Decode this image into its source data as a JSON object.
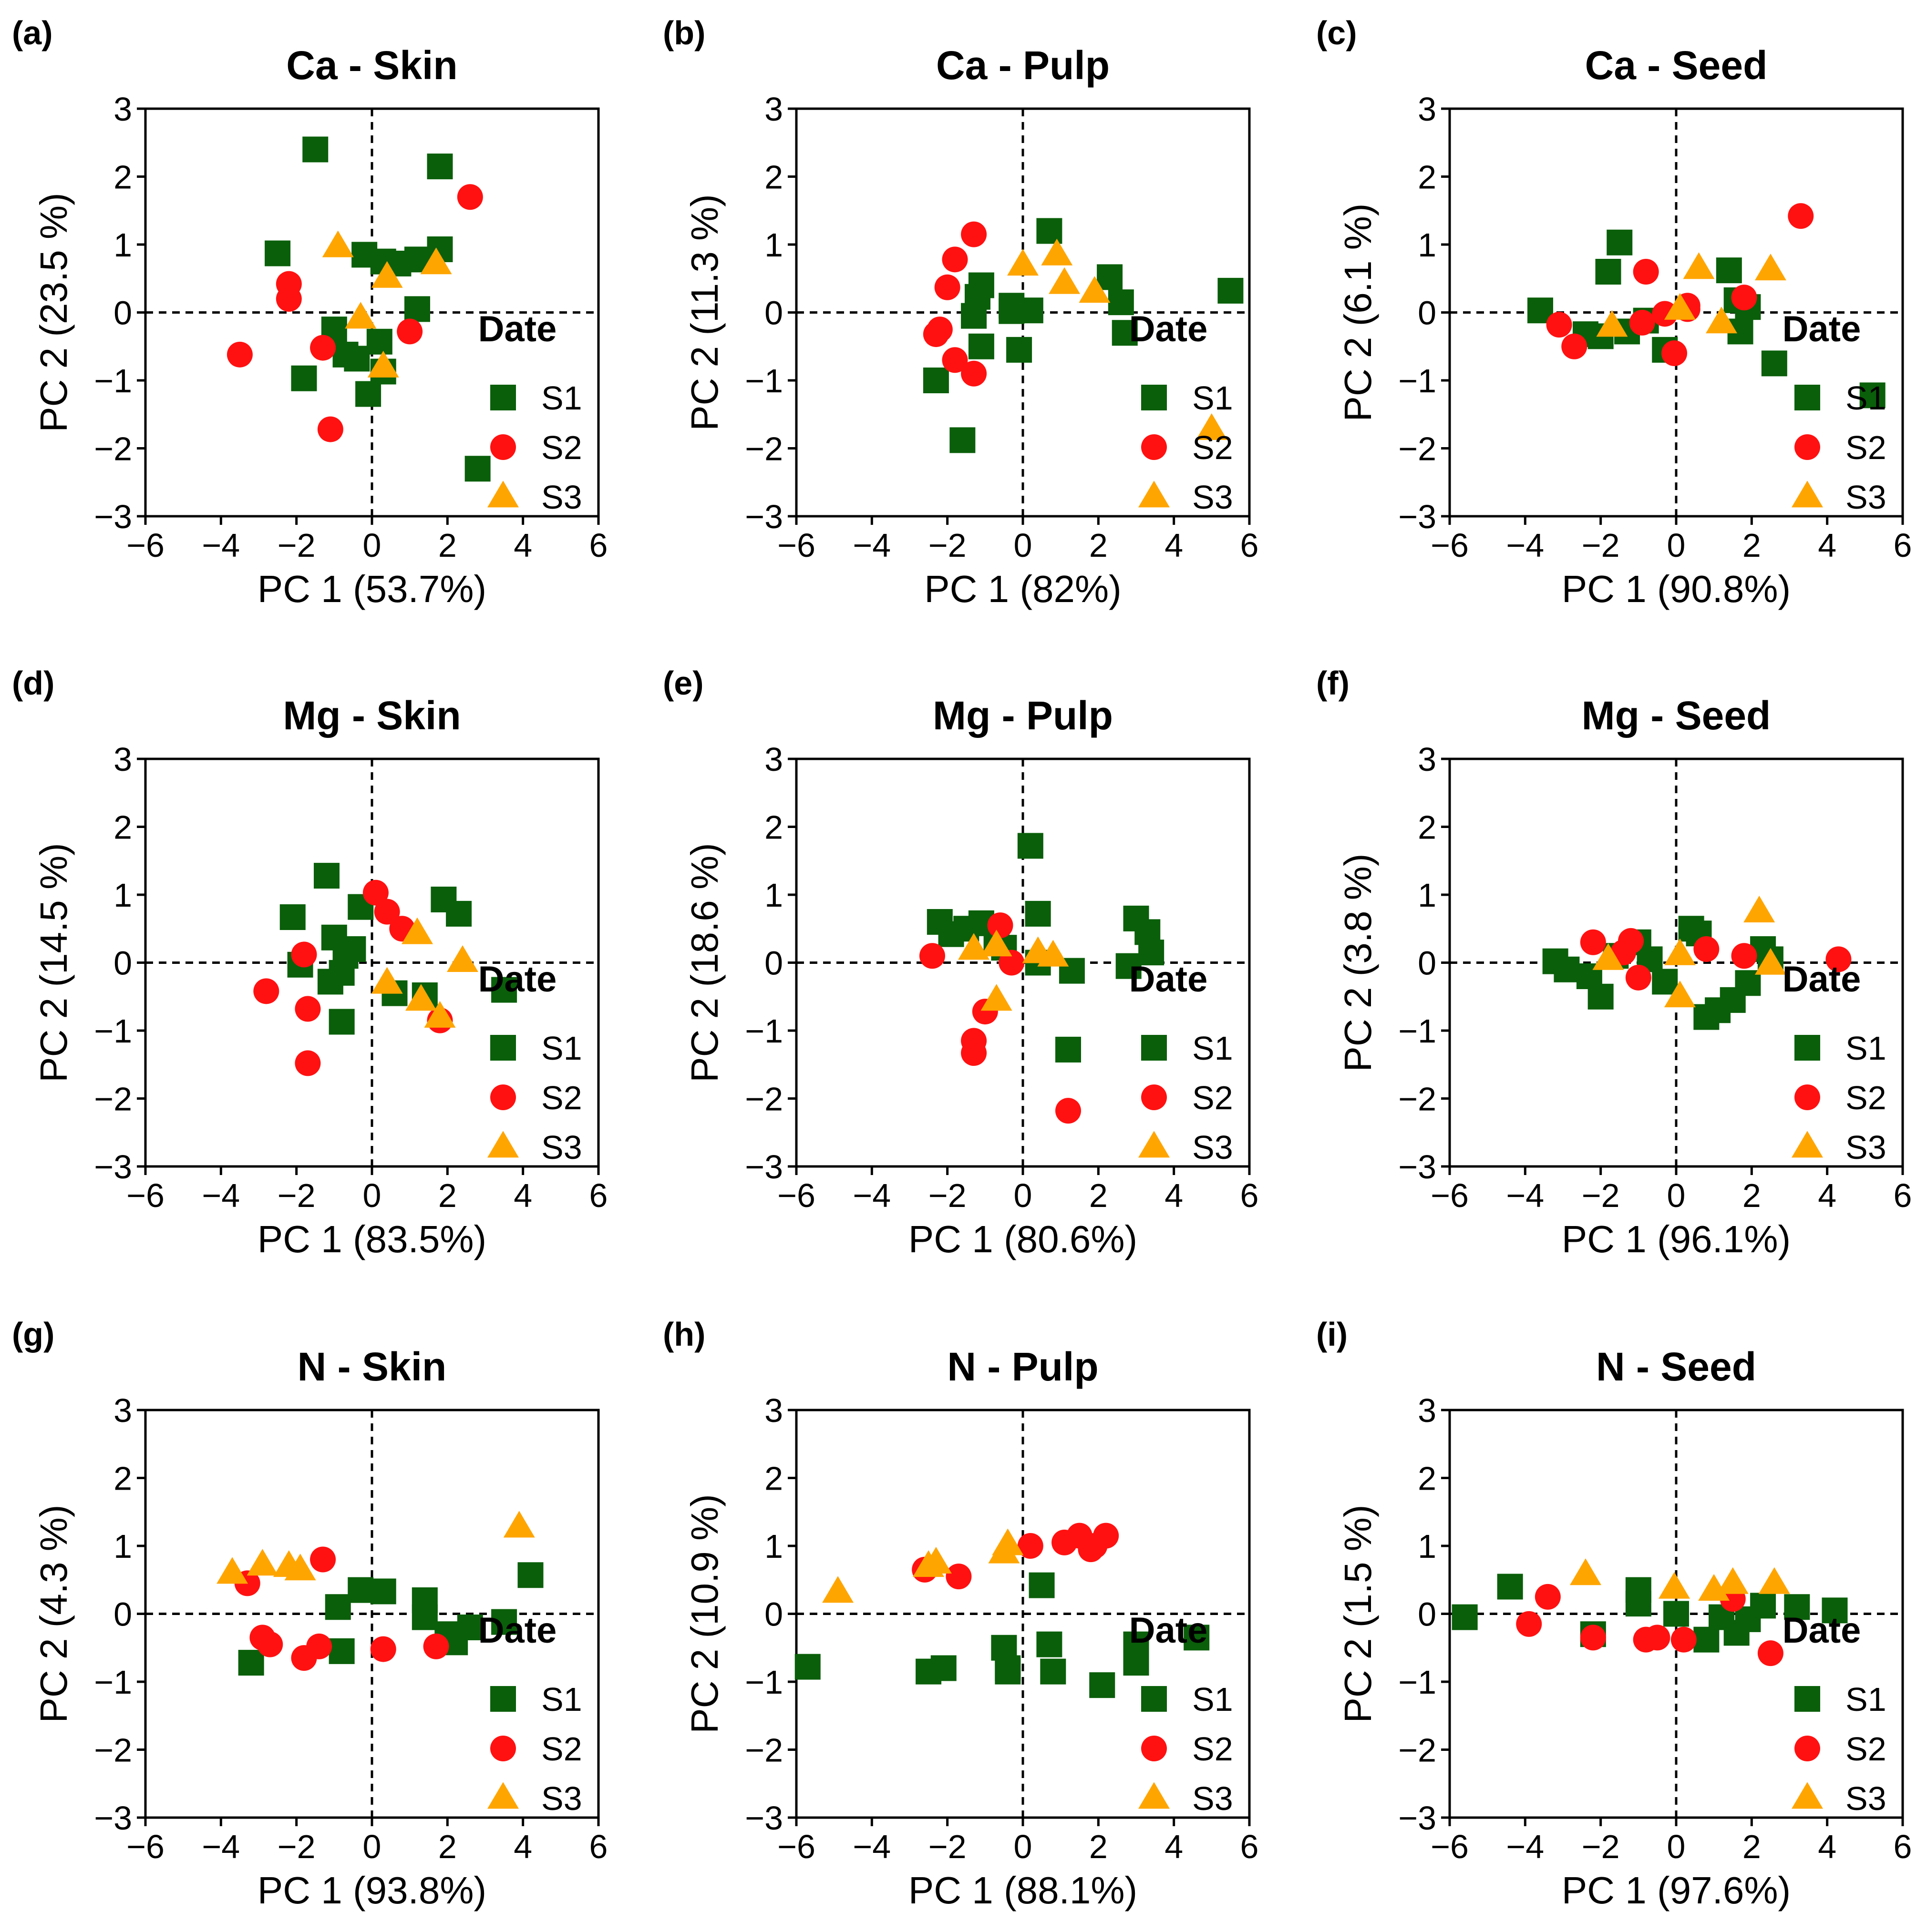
{
  "colors": {
    "S1": "#0a5f0a",
    "S2": "#ff1111",
    "S3": "#ffa500"
  },
  "chart_data": [
    {
      "type": "scatter",
      "panel": "(a)",
      "title": "Ca - Skin",
      "xlabel": "PC 1 (53.7%)",
      "ylabel": "PC 2 (23.5 %)",
      "xlim": [
        -6,
        6
      ],
      "ylim": [
        -3,
        3
      ],
      "xticks": [
        "−6",
        "−4",
        "−2",
        "0",
        "2",
        "4",
        "6"
      ],
      "yticks": [
        "−3",
        "−2",
        "−1",
        "0",
        "1",
        "2",
        "3"
      ],
      "legend": {
        "title": "Date",
        "entries": [
          "S1",
          "S2",
          "S3"
        ]
      },
      "series": [
        {
          "name": "S1",
          "marker": "square",
          "x": [
            -1.5,
            -2.5,
            -0.2,
            0.3,
            0.7,
            1.2,
            1.8,
            1.8,
            -1.8,
            -1.0,
            -0.7,
            -0.4,
            0.2,
            0.3,
            -0.1,
            1.2,
            2.8
          ],
          "y": [
            2.4,
            0.87,
            0.85,
            0.75,
            0.72,
            0.78,
            2.15,
            0.93,
            -0.97,
            -0.25,
            -0.62,
            -0.68,
            -0.43,
            -0.87,
            -1.2,
            0.05,
            -2.3
          ]
        },
        {
          "name": "S2",
          "marker": "circle",
          "x": [
            -2.2,
            -2.2,
            -3.5,
            -1.3,
            -1.1,
            1.0,
            2.6
          ],
          "y": [
            0.42,
            0.2,
            -0.62,
            -0.52,
            -1.72,
            -0.28,
            1.7
          ]
        },
        {
          "name": "S3",
          "marker": "triangle",
          "x": [
            -0.9,
            0.4,
            1.7,
            -0.3,
            0.3
          ],
          "y": [
            0.97,
            0.52,
            0.72,
            -0.08,
            -0.8
          ]
        }
      ]
    },
    {
      "type": "scatter",
      "panel": "(b)",
      "title": "Ca - Pulp",
      "xlabel": "PC 1 (82%)",
      "ylabel": "PC 2 (11.3 %)",
      "xlim": [
        -6,
        6
      ],
      "ylim": [
        -3,
        3
      ],
      "xticks": [
        "−6",
        "−4",
        "−2",
        "0",
        "2",
        "4",
        "6"
      ],
      "yticks": [
        "−3",
        "−2",
        "−1",
        "0",
        "1",
        "2",
        "3"
      ],
      "legend": {
        "title": "Date",
        "entries": [
          "S1",
          "S2",
          "S3"
        ]
      },
      "series": [
        {
          "name": "S1",
          "marker": "square",
          "x": [
            0.7,
            -1.1,
            -1.2,
            -1.3,
            -1.1,
            -0.3,
            -0.3,
            0.2,
            -2.3,
            -1.6,
            -0.1,
            2.3,
            2.6,
            2.7,
            5.5
          ],
          "y": [
            1.2,
            0.4,
            0.23,
            -0.05,
            -0.5,
            0.1,
            0.02,
            0.03,
            -1.0,
            -1.88,
            -0.55,
            0.52,
            0.15,
            -0.3,
            0.32
          ]
        },
        {
          "name": "S2",
          "marker": "circle",
          "x": [
            -1.3,
            -1.8,
            -2.0,
            -2.2,
            -2.3,
            -1.8,
            -1.3
          ],
          "y": [
            1.15,
            0.78,
            0.37,
            -0.25,
            -0.32,
            -0.7,
            -0.9
          ]
        },
        {
          "name": "S3",
          "marker": "triangle",
          "x": [
            0.0,
            0.9,
            1.1,
            1.9,
            5.0
          ],
          "y": [
            0.7,
            0.85,
            0.43,
            0.3,
            -1.72
          ]
        }
      ]
    },
    {
      "type": "scatter",
      "panel": "(c)",
      "title": "Ca - Seed",
      "xlabel": "PC 1 (90.8%)",
      "ylabel": "PC 2 (6.1 %)",
      "xlim": [
        -6,
        6
      ],
      "ylim": [
        -3,
        3
      ],
      "xticks": [
        "−6",
        "−4",
        "−2",
        "0",
        "2",
        "4",
        "6"
      ],
      "yticks": [
        "−3",
        "−2",
        "−1",
        "0",
        "1",
        "2",
        "3"
      ],
      "legend": {
        "title": "Date",
        "entries": [
          "S1",
          "S2",
          "S3"
        ]
      },
      "series": [
        {
          "name": "S1",
          "marker": "square",
          "x": [
            -1.5,
            -1.8,
            -3.6,
            -2.4,
            -2.0,
            -1.3,
            -0.8,
            1.4,
            1.6,
            1.9,
            1.7,
            2.6,
            -0.3,
            5.2
          ],
          "y": [
            1.03,
            0.6,
            0.03,
            -0.32,
            -0.35,
            -0.28,
            -0.12,
            0.62,
            0.18,
            0.08,
            -0.28,
            -0.75,
            -0.55,
            -1.22
          ]
        },
        {
          "name": "S2",
          "marker": "circle",
          "x": [
            3.3,
            -0.8,
            -3.1,
            -2.7,
            -0.9,
            0.3,
            0.3,
            1.8,
            -0.05,
            -0.3
          ],
          "y": [
            1.42,
            0.6,
            -0.18,
            -0.5,
            -0.15,
            0.05,
            0.1,
            0.22,
            -0.6,
            -0.02
          ]
        },
        {
          "name": "S3",
          "marker": "triangle",
          "x": [
            0.6,
            2.5,
            -1.7,
            0.1,
            1.2
          ],
          "y": [
            0.65,
            0.63,
            -0.2,
            0.05,
            -0.15
          ]
        }
      ]
    },
    {
      "type": "scatter",
      "panel": "(d)",
      "title": "Mg - Skin",
      "xlabel": "PC 1 (83.5%)",
      "ylabel": "PC 2 (14.5 %)",
      "xlim": [
        -6,
        6
      ],
      "ylim": [
        -3,
        3
      ],
      "xticks": [
        "−6",
        "−4",
        "−2",
        "0",
        "2",
        "4",
        "6"
      ],
      "yticks": [
        "−3",
        "−2",
        "−1",
        "0",
        "1",
        "2",
        "3"
      ],
      "legend": {
        "title": "Date",
        "entries": [
          "S1",
          "S2",
          "S3"
        ]
      },
      "series": [
        {
          "name": "S1",
          "marker": "square",
          "x": [
            -1.2,
            -2.1,
            -1.0,
            -0.5,
            -0.3,
            -0.7,
            -1.9,
            -1.1,
            -0.8,
            -0.8,
            1.9,
            2.3,
            3.5,
            0.6,
            1.4
          ],
          "y": [
            1.28,
            0.67,
            0.37,
            0.2,
            0.82,
            0.1,
            -0.03,
            -0.28,
            -0.15,
            -0.87,
            0.93,
            0.72,
            -0.4,
            -0.45,
            -0.48
          ]
        },
        {
          "name": "S2",
          "marker": "circle",
          "x": [
            0.1,
            0.4,
            0.8,
            -1.8,
            -2.8,
            -1.7,
            -1.7,
            1.8
          ],
          "y": [
            1.03,
            0.75,
            0.5,
            0.12,
            -0.42,
            -0.68,
            -1.48,
            -0.85
          ]
        },
        {
          "name": "S3",
          "marker": "triangle",
          "x": [
            1.2,
            2.4,
            0.4,
            1.3,
            1.8
          ],
          "y": [
            0.43,
            0.02,
            -0.3,
            -0.55,
            -0.8
          ]
        }
      ]
    },
    {
      "type": "scatter",
      "panel": "(e)",
      "title": "Mg - Pulp",
      "xlabel": "PC 1 (80.6%)",
      "ylabel": "PC 2 (18.6 %)",
      "xlim": [
        -6,
        6
      ],
      "ylim": [
        -3,
        3
      ],
      "xticks": [
        "−6",
        "−4",
        "−2",
        "0",
        "2",
        "4",
        "6"
      ],
      "yticks": [
        "−3",
        "−2",
        "−1",
        "0",
        "1",
        "2",
        "3"
      ],
      "legend": {
        "title": "Date",
        "entries": [
          "S1",
          "S2",
          "S3"
        ]
      },
      "series": [
        {
          "name": "S1",
          "marker": "square",
          "x": [
            0.2,
            -2.2,
            -1.9,
            -1.5,
            -1.1,
            -0.7,
            -0.5,
            0.4,
            3.0,
            3.3,
            3.4,
            2.8,
            1.3,
            0.4,
            1.2
          ],
          "y": [
            1.72,
            0.6,
            0.42,
            0.5,
            0.58,
            0.35,
            0.22,
            0.72,
            0.65,
            0.45,
            0.15,
            -0.05,
            -0.12,
            0.0,
            -1.28
          ]
        },
        {
          "name": "S2",
          "marker": "circle",
          "x": [
            -2.4,
            -0.6,
            -1.3,
            -1.3,
            -1.0,
            -0.3,
            1.2
          ],
          "y": [
            0.1,
            0.55,
            -1.15,
            -1.33,
            -0.72,
            0.0,
            -2.18
          ]
        },
        {
          "name": "S3",
          "marker": "triangle",
          "x": [
            -1.3,
            -0.7,
            0.4,
            0.8,
            -0.7
          ],
          "y": [
            0.2,
            0.25,
            0.15,
            0.1,
            -0.55
          ]
        }
      ]
    },
    {
      "type": "scatter",
      "panel": "(f)",
      "title": "Mg - Seed",
      "xlabel": "PC 1 (96.1%)",
      "ylabel": "PC 2 (3.8 %)",
      "xlim": [
        -6,
        6
      ],
      "ylim": [
        -3,
        3
      ],
      "xticks": [
        "−6",
        "−4",
        "−2",
        "0",
        "2",
        "4",
        "6"
      ],
      "yticks": [
        "−3",
        "−2",
        "−1",
        "0",
        "1",
        "2",
        "3"
      ],
      "legend": {
        "title": "Date",
        "entries": [
          "S1",
          "S2",
          "S3"
        ]
      },
      "series": [
        {
          "name": "S1",
          "marker": "square",
          "x": [
            -3.2,
            -2.9,
            -2.3,
            -2.0,
            -1.6,
            -1.0,
            -0.7,
            -0.3,
            0.4,
            0.6,
            0.8,
            1.1,
            1.5,
            1.9,
            2.3,
            2.5
          ],
          "y": [
            0.02,
            -0.1,
            -0.2,
            -0.5,
            0.1,
            0.3,
            0.05,
            -0.28,
            0.5,
            0.43,
            -0.8,
            -0.7,
            -0.55,
            -0.3,
            0.2,
            0.05
          ]
        },
        {
          "name": "S2",
          "marker": "circle",
          "x": [
            -2.2,
            -1.4,
            -1.2,
            -1.0,
            0.8,
            1.8,
            4.3
          ],
          "y": [
            0.3,
            0.15,
            0.32,
            -0.22,
            0.2,
            0.1,
            0.05
          ]
        },
        {
          "name": "S3",
          "marker": "triangle",
          "x": [
            2.2,
            -1.8,
            0.1,
            0.1,
            2.5
          ],
          "y": [
            0.75,
            0.05,
            0.12,
            -0.5,
            -0.02
          ]
        }
      ]
    },
    {
      "type": "scatter",
      "panel": "(g)",
      "title": "N - Skin",
      "xlabel": "PC 1 (93.8%)",
      "ylabel": "PC 2 (4.3 %)",
      "xlim": [
        -6,
        6
      ],
      "ylim": [
        -3,
        3
      ],
      "xticks": [
        "−6",
        "−4",
        "−2",
        "0",
        "2",
        "4",
        "6"
      ],
      "yticks": [
        "−3",
        "−2",
        "−1",
        "0",
        "1",
        "2",
        "3"
      ],
      "legend": {
        "title": "Date",
        "entries": [
          "S1",
          "S2",
          "S3"
        ]
      },
      "series": [
        {
          "name": "S1",
          "marker": "square",
          "x": [
            -3.2,
            -0.9,
            -0.8,
            -0.3,
            0.3,
            1.4,
            1.4,
            2.0,
            2.2,
            2.6,
            3.5,
            4.2
          ],
          "y": [
            -0.72,
            0.1,
            -0.55,
            0.35,
            0.33,
            0.2,
            -0.05,
            -0.3,
            -0.42,
            -0.2,
            -0.12,
            0.57
          ]
        },
        {
          "name": "S2",
          "marker": "circle",
          "x": [
            -3.3,
            -2.9,
            -2.7,
            -1.8,
            -1.4,
            -1.3,
            0.3,
            1.7
          ],
          "y": [
            0.45,
            -0.35,
            -0.45,
            -0.65,
            -0.48,
            0.8,
            -0.52,
            -0.48
          ]
        },
        {
          "name": "S3",
          "marker": "triangle",
          "x": [
            -3.7,
            -2.9,
            -2.2,
            -1.9,
            3.9
          ],
          "y": [
            0.6,
            0.72,
            0.7,
            0.65,
            1.28
          ]
        }
      ]
    },
    {
      "type": "scatter",
      "panel": "(h)",
      "title": "N - Pulp",
      "xlabel": "PC 1 (88.1%)",
      "ylabel": "PC 2 (10.9 %)",
      "xlim": [
        -6,
        6
      ],
      "ylim": [
        -3,
        3
      ],
      "xticks": [
        "−6",
        "−4",
        "−2",
        "0",
        "2",
        "4",
        "6"
      ],
      "yticks": [
        "−3",
        "−2",
        "−1",
        "0",
        "1",
        "2",
        "3"
      ],
      "legend": {
        "title": "Date",
        "entries": [
          "S1",
          "S2",
          "S3"
        ]
      },
      "series": [
        {
          "name": "S1",
          "marker": "square",
          "x": [
            -5.7,
            -2.5,
            -2.1,
            -0.5,
            -0.4,
            -0.4,
            0.5,
            0.7,
            0.8,
            2.1,
            3.0,
            3.0,
            4.6
          ],
          "y": [
            -0.78,
            -0.85,
            -0.8,
            -0.5,
            -0.8,
            -0.85,
            0.42,
            -0.45,
            -0.85,
            -1.05,
            -0.45,
            -0.72,
            -0.35
          ]
        },
        {
          "name": "S2",
          "marker": "circle",
          "x": [
            -2.6,
            -1.7,
            0.2,
            1.1,
            1.5,
            1.8,
            2.2,
            1.9
          ],
          "y": [
            0.65,
            0.55,
            1.0,
            1.05,
            1.15,
            0.95,
            1.15,
            1.0
          ]
        },
        {
          "name": "S3",
          "marker": "triangle",
          "x": [
            -4.9,
            -2.3,
            -2.5,
            -0.4,
            -0.5
          ],
          "y": [
            0.32,
            0.75,
            0.7,
            1.02,
            0.9
          ]
        }
      ]
    },
    {
      "type": "scatter",
      "panel": "(i)",
      "title": "N - Seed",
      "xlabel": "PC 1 (97.6%)",
      "ylabel": "PC 2 (1.5 %)",
      "xlim": [
        -6,
        6
      ],
      "ylim": [
        -3,
        3
      ],
      "xticks": [
        "−6",
        "−4",
        "−2",
        "0",
        "2",
        "4",
        "6"
      ],
      "yticks": [
        "−3",
        "−2",
        "−1",
        "0",
        "1",
        "2",
        "3"
      ],
      "legend": {
        "title": "Date",
        "entries": [
          "S1",
          "S2",
          "S3"
        ]
      },
      "series": [
        {
          "name": "S1",
          "marker": "square",
          "x": [
            -5.6,
            -4.4,
            -2.2,
            -1.0,
            -1.0,
            0.0,
            0.8,
            1.2,
            1.6,
            1.9,
            2.3,
            3.2,
            4.2
          ],
          "y": [
            -0.05,
            0.4,
            -0.3,
            0.35,
            0.15,
            0.0,
            -0.38,
            -0.05,
            -0.28,
            -0.08,
            0.12,
            0.1,
            0.05
          ]
        },
        {
          "name": "S2",
          "marker": "circle",
          "x": [
            -3.9,
            -3.4,
            -2.2,
            -0.8,
            -0.5,
            0.2,
            1.5,
            2.5
          ],
          "y": [
            -0.15,
            0.25,
            -0.35,
            -0.38,
            -0.35,
            -0.38,
            0.22,
            -0.58
          ]
        },
        {
          "name": "S3",
          "marker": "triangle",
          "x": [
            -2.4,
            -0.05,
            1.0,
            1.5,
            2.6
          ],
          "y": [
            0.58,
            0.38,
            0.35,
            0.45,
            0.45
          ]
        }
      ]
    }
  ]
}
